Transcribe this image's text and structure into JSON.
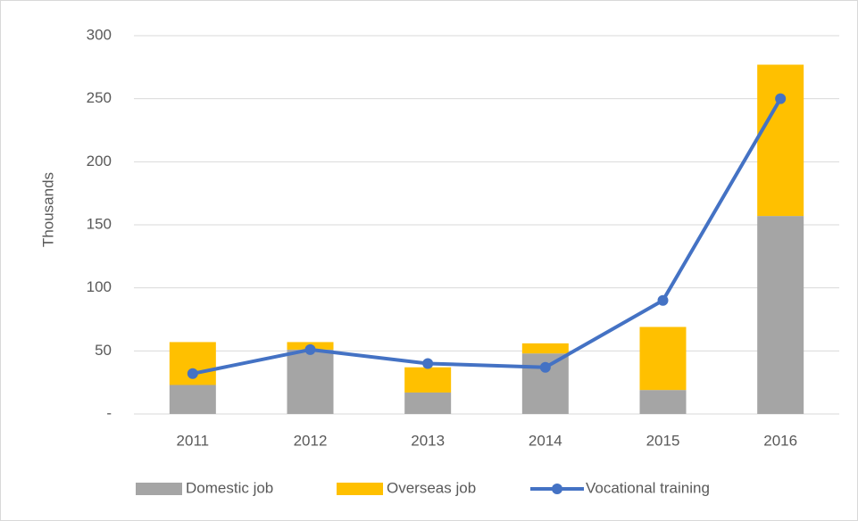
{
  "chart_data": {
    "type": "bar-line",
    "y_label": "Thousands",
    "categories": [
      "2011",
      "2012",
      "2013",
      "2014",
      "2015",
      "2016"
    ],
    "series": [
      {
        "name": "Domestic job",
        "color": "#a5a5a5",
        "type": "bar",
        "values": [
          23,
          51,
          17,
          48,
          19,
          157
        ]
      },
      {
        "name": "Overseas job",
        "color": "#ffc000",
        "type": "bar",
        "values": [
          34,
          6,
          20,
          8,
          50,
          120
        ]
      },
      {
        "name": "Vocational training",
        "color": "#4472c4",
        "type": "line",
        "values": [
          32,
          51,
          40,
          37,
          90,
          250
        ]
      }
    ],
    "ylim": [
      0,
      300
    ],
    "yticks": [
      {
        "value": 0,
        "label": "-"
      },
      50,
      100,
      150,
      200,
      250,
      300
    ],
    "grid": true,
    "legend": "bottom"
  }
}
